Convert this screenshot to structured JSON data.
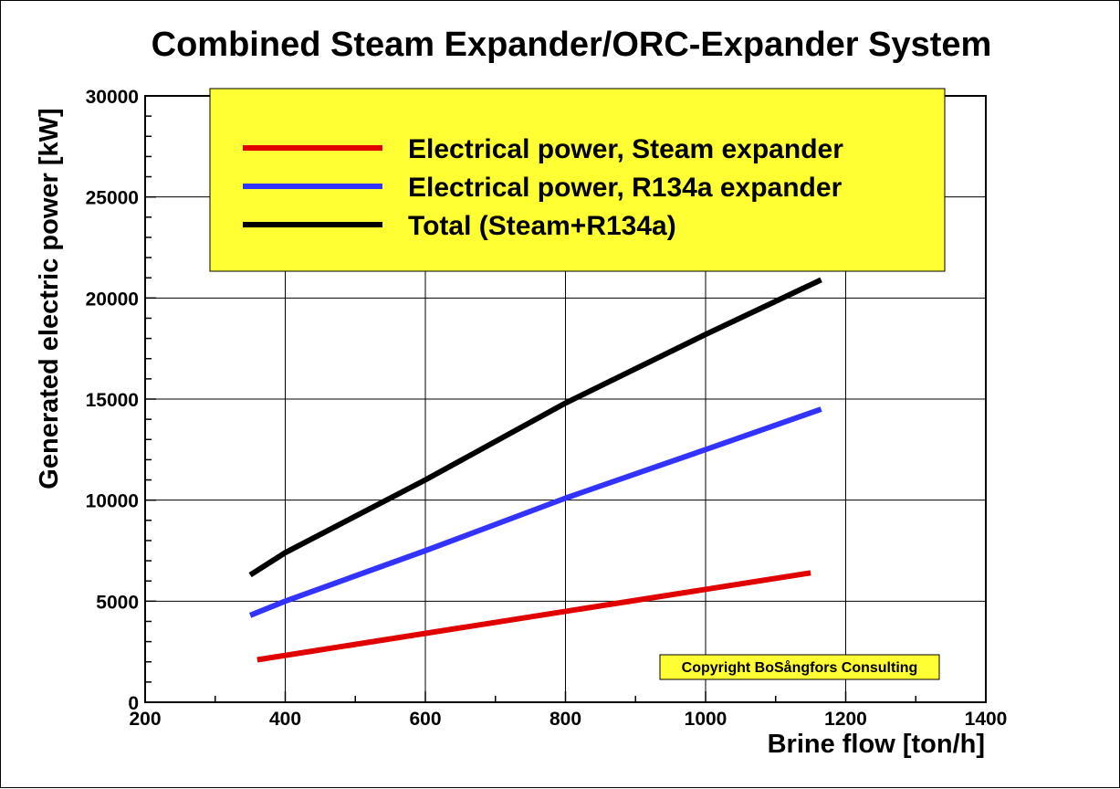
{
  "chart_data": {
    "type": "line",
    "title": "Combined Steam Expander/ORC-Expander System",
    "xlabel": "Brine flow [ton/h]",
    "ylabel": "Generated electric power [kW]",
    "xlim": [
      200,
      1400
    ],
    "ylim": [
      0,
      30000
    ],
    "x_ticks": [
      200,
      400,
      600,
      800,
      1000,
      1200,
      1400
    ],
    "y_ticks": [
      0,
      5000,
      10000,
      15000,
      20000,
      25000,
      30000
    ],
    "grid": true,
    "legend_position": "top",
    "legend_background": "#ffff33",
    "series": [
      {
        "name": "Electrical power, Steam expander",
        "color": "#e00000",
        "x": [
          360,
          1150
        ],
        "y": [
          2100,
          6400
        ]
      },
      {
        "name": "Electrical power, R134a expander",
        "color": "#3333ff",
        "x": [
          350,
          400,
          600,
          800,
          1000,
          1165
        ],
        "y": [
          4300,
          5000,
          7500,
          10100,
          12500,
          14500
        ]
      },
      {
        "name": "Total (Steam+R134a)",
        "color": "#000000",
        "x": [
          350,
          400,
          600,
          800,
          1000,
          1165
        ],
        "y": [
          6300,
          7400,
          11000,
          14800,
          18200,
          20900
        ]
      }
    ],
    "annotation": "Copyright BoSångfors Consulting",
    "annotation_background": "#ffff33"
  }
}
